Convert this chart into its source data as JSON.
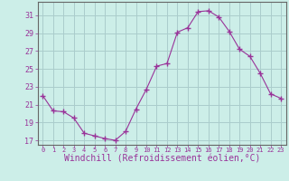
{
  "x": [
    0,
    1,
    2,
    3,
    4,
    5,
    6,
    7,
    8,
    9,
    10,
    11,
    12,
    13,
    14,
    15,
    16,
    17,
    18,
    19,
    20,
    21,
    22,
    23
  ],
  "y": [
    22.0,
    20.3,
    20.2,
    19.5,
    17.8,
    17.5,
    17.2,
    17.0,
    18.0,
    20.5,
    22.7,
    25.3,
    25.6,
    29.1,
    29.6,
    31.4,
    31.5,
    30.8,
    29.2,
    27.2,
    26.4,
    24.5,
    22.2,
    21.7
  ],
  "line_color": "#993399",
  "marker": "+",
  "marker_size": 4,
  "bg_color": "#cceee8",
  "grid_color": "#aacccc",
  "spine_color": "#666666",
  "tick_color": "#993399",
  "xlabel": "Windchill (Refroidissement éolien,°C)",
  "xlabel_fontsize": 7,
  "xlim": [
    -0.5,
    23.5
  ],
  "ylim": [
    16.5,
    32.5
  ],
  "yticks": [
    17,
    19,
    21,
    23,
    25,
    27,
    29,
    31
  ],
  "xticks": [
    0,
    1,
    2,
    3,
    4,
    5,
    6,
    7,
    8,
    9,
    10,
    11,
    12,
    13,
    14,
    15,
    16,
    17,
    18,
    19,
    20,
    21,
    22,
    23
  ],
  "xtick_fontsize": 5,
  "ytick_fontsize": 6
}
